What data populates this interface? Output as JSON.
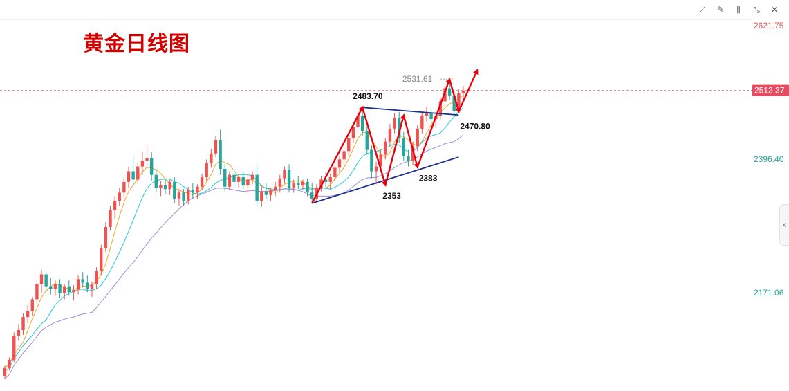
{
  "title": "黄金日线图",
  "toolbar": {
    "items": [
      {
        "name": "line-tool-icon",
        "glyph": "⟋"
      },
      {
        "name": "pencil-icon",
        "glyph": "✎"
      },
      {
        "name": "candle-type-icon",
        "glyph": "⫼"
      },
      {
        "name": "collapse-arrows-icon",
        "glyph": "⤡"
      },
      {
        "name": "close-icon",
        "glyph": "✕"
      }
    ]
  },
  "collapse_glyph": "‹",
  "colors": {
    "up": "#ef5350",
    "down": "#26a69a",
    "ma_fast": "#f5a623",
    "ma_mid": "#26c6da",
    "ma_slow": "#9c8fd8",
    "annotation_red": "#e8000b",
    "trend_blue": "#1a2f8f",
    "price_tag_bg": "#e84a5f",
    "price_line": "#e06377"
  },
  "chart_data": {
    "type": "candlestick",
    "y_ticks": [
      {
        "value": 2621.75,
        "label": "2621.75",
        "color": "#e05a5a"
      },
      {
        "value": 2396.4,
        "label": "2396.40",
        "color": "#26a69a"
      },
      {
        "value": 2171.06,
        "label": "2171.06",
        "color": "#26a69a"
      }
    ],
    "current_price": {
      "value": 2512.37,
      "label": "2512.37"
    },
    "high_marker": {
      "value": 2531.61,
      "label": "2531.61"
    },
    "annotations": [
      {
        "label": "2483.70",
        "value": 2483.7
      },
      {
        "label": "2470.80",
        "value": 2470.8
      },
      {
        "label": "2353",
        "value": 2353
      },
      {
        "label": "2383",
        "value": 2383
      }
    ],
    "candles": [
      [
        2030,
        2048,
        2026,
        2044
      ],
      [
        2044,
        2062,
        2040,
        2058
      ],
      [
        2058,
        2104,
        2054,
        2098
      ],
      [
        2098,
        2118,
        2090,
        2108
      ],
      [
        2108,
        2136,
        2100,
        2130
      ],
      [
        2130,
        2150,
        2120,
        2140
      ],
      [
        2140,
        2164,
        2132,
        2160
      ],
      [
        2160,
        2192,
        2152,
        2186
      ],
      [
        2186,
        2210,
        2170,
        2202
      ],
      [
        2202,
        2206,
        2174,
        2182
      ],
      [
        2182,
        2196,
        2168,
        2178
      ],
      [
        2178,
        2192,
        2166,
        2186
      ],
      [
        2186,
        2194,
        2162,
        2170
      ],
      [
        2170,
        2186,
        2160,
        2182
      ],
      [
        2182,
        2192,
        2166,
        2172
      ],
      [
        2172,
        2184,
        2158,
        2176
      ],
      [
        2176,
        2200,
        2168,
        2194
      ],
      [
        2194,
        2206,
        2180,
        2188
      ],
      [
        2188,
        2200,
        2172,
        2178
      ],
      [
        2178,
        2190,
        2164,
        2186
      ],
      [
        2186,
        2214,
        2178,
        2208
      ],
      [
        2208,
        2252,
        2200,
        2246
      ],
      [
        2246,
        2290,
        2240,
        2282
      ],
      [
        2282,
        2318,
        2276,
        2310
      ],
      [
        2310,
        2334,
        2296,
        2326
      ],
      [
        2326,
        2348,
        2318,
        2340
      ],
      [
        2340,
        2366,
        2330,
        2358
      ],
      [
        2358,
        2384,
        2348,
        2376
      ],
      [
        2376,
        2400,
        2352,
        2362
      ],
      [
        2362,
        2390,
        2354,
        2384
      ],
      [
        2384,
        2408,
        2370,
        2394
      ],
      [
        2394,
        2420,
        2380,
        2398
      ],
      [
        2398,
        2408,
        2360,
        2370
      ],
      [
        2370,
        2380,
        2340,
        2348
      ],
      [
        2348,
        2360,
        2334,
        2352
      ],
      [
        2352,
        2362,
        2338,
        2346
      ],
      [
        2346,
        2362,
        2336,
        2358
      ],
      [
        2358,
        2366,
        2322,
        2330
      ],
      [
        2330,
        2344,
        2318,
        2340
      ],
      [
        2340,
        2346,
        2318,
        2326
      ],
      [
        2326,
        2350,
        2320,
        2344
      ],
      [
        2344,
        2356,
        2330,
        2340
      ],
      [
        2340,
        2354,
        2330,
        2350
      ],
      [
        2350,
        2372,
        2344,
        2366
      ],
      [
        2366,
        2396,
        2360,
        2390
      ],
      [
        2390,
        2414,
        2382,
        2406
      ],
      [
        2406,
        2436,
        2400,
        2428
      ],
      [
        2428,
        2446,
        2370,
        2380
      ],
      [
        2380,
        2388,
        2342,
        2350
      ],
      [
        2350,
        2376,
        2344,
        2370
      ],
      [
        2370,
        2380,
        2350,
        2358
      ],
      [
        2358,
        2372,
        2348,
        2366
      ],
      [
        2366,
        2376,
        2346,
        2352
      ],
      [
        2352,
        2370,
        2338,
        2362
      ],
      [
        2362,
        2376,
        2354,
        2370
      ],
      [
        2370,
        2386,
        2316,
        2326
      ],
      [
        2326,
        2350,
        2316,
        2342
      ],
      [
        2342,
        2356,
        2330,
        2336
      ],
      [
        2336,
        2348,
        2326,
        2344
      ],
      [
        2344,
        2358,
        2334,
        2350
      ],
      [
        2350,
        2370,
        2340,
        2364
      ],
      [
        2364,
        2384,
        2356,
        2378
      ],
      [
        2378,
        2388,
        2340,
        2348
      ],
      [
        2348,
        2362,
        2340,
        2356
      ],
      [
        2356,
        2368,
        2346,
        2352
      ],
      [
        2352,
        2362,
        2344,
        2358
      ],
      [
        2358,
        2364,
        2334,
        2340
      ],
      [
        2340,
        2356,
        2322,
        2330
      ],
      [
        2330,
        2354,
        2324,
        2348
      ],
      [
        2348,
        2368,
        2342,
        2362
      ],
      [
        2362,
        2374,
        2350,
        2358
      ],
      [
        2358,
        2372,
        2346,
        2366
      ],
      [
        2366,
        2388,
        2360,
        2382
      ],
      [
        2382,
        2402,
        2374,
        2396
      ],
      [
        2396,
        2418,
        2386,
        2410
      ],
      [
        2410,
        2440,
        2402,
        2432
      ],
      [
        2432,
        2458,
        2424,
        2450
      ],
      [
        2450,
        2476,
        2442,
        2470
      ],
      [
        2470,
        2484,
        2436,
        2444
      ],
      [
        2444,
        2452,
        2404,
        2412
      ],
      [
        2412,
        2420,
        2364,
        2376
      ],
      [
        2376,
        2392,
        2354,
        2384
      ],
      [
        2384,
        2412,
        2378,
        2404
      ],
      [
        2404,
        2432,
        2396,
        2426
      ],
      [
        2426,
        2456,
        2418,
        2448
      ],
      [
        2448,
        2474,
        2440,
        2466
      ],
      [
        2466,
        2476,
        2424,
        2432
      ],
      [
        2432,
        2442,
        2394,
        2402
      ],
      [
        2402,
        2412,
        2384,
        2394
      ],
      [
        2394,
        2426,
        2386,
        2418
      ],
      [
        2418,
        2454,
        2410,
        2448
      ],
      [
        2448,
        2476,
        2440,
        2470
      ],
      [
        2470,
        2484,
        2460,
        2474
      ],
      [
        2474,
        2480,
        2458,
        2464
      ],
      [
        2464,
        2476,
        2450,
        2470
      ],
      [
        2470,
        2500,
        2464,
        2494
      ],
      [
        2494,
        2522,
        2486,
        2516
      ],
      [
        2516,
        2532,
        2496,
        2504
      ],
      [
        2504,
        2512,
        2470,
        2478
      ],
      [
        2478,
        2514,
        2474,
        2508
      ],
      [
        2508,
        2520,
        2494,
        2512
      ]
    ]
  }
}
